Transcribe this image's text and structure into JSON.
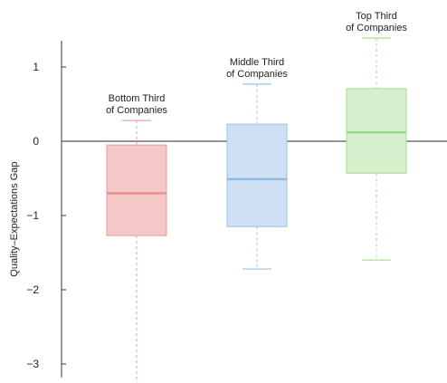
{
  "chart_data": {
    "type": "box",
    "ylabel": "Quality–Expectations Gap",
    "ylim": [
      -3.3,
      1.5
    ],
    "yticks": [
      1,
      0,
      -1,
      -2,
      -3
    ],
    "ytick_labels": [
      "1",
      "0",
      "−1",
      "−2",
      "−3"
    ],
    "grid": false,
    "zero_line": true,
    "groups": [
      {
        "label_lines": [
          "Bottom Third",
          "of Companies"
        ],
        "min": -3.25,
        "q1": -1.27,
        "median": -0.7,
        "q3": -0.05,
        "max": 0.28,
        "fill": "#f5c8c8",
        "stroke": "#ec9a9a",
        "median_color": "#ec8f8f"
      },
      {
        "label_lines": [
          "Middle Third",
          "of Companies"
        ],
        "min": -1.72,
        "q1": -1.15,
        "median": -0.51,
        "q3": 0.23,
        "max": 0.77,
        "fill": "#cfe0f4",
        "stroke": "#9cc1ec",
        "median_color": "#8fbbe9"
      },
      {
        "label_lines": [
          "Top Third",
          "of Companies"
        ],
        "min": -1.6,
        "q1": -0.43,
        "median": 0.12,
        "q3": 0.71,
        "max": 1.39,
        "fill": "#d7efcc",
        "stroke": "#a7dc93",
        "median_color": "#9bd684"
      }
    ]
  }
}
